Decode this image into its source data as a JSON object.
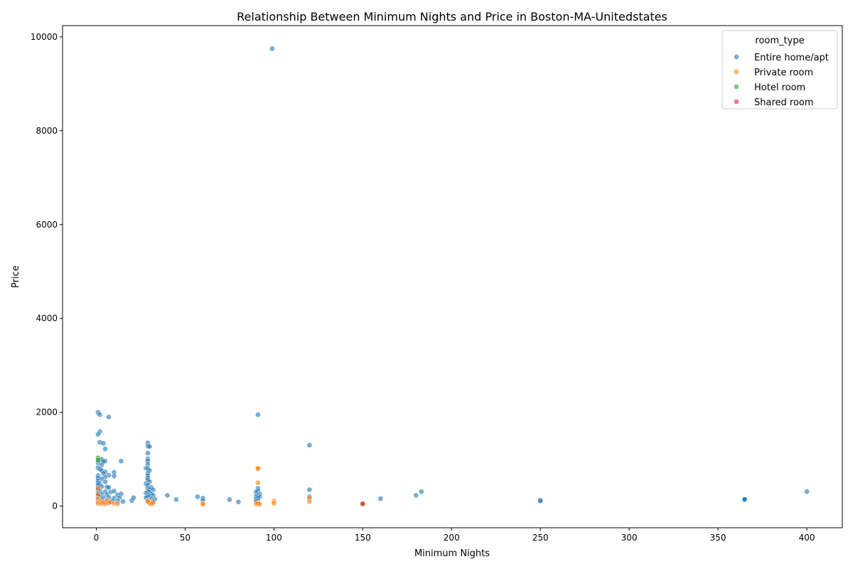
{
  "chart_data": {
    "type": "scatter",
    "title": "Relationship Between Minimum Nights and Price in Boston-MA-Unitedstates",
    "xlabel": "Minimum Nights",
    "ylabel": "Price",
    "xlim": [
      -19,
      420
    ],
    "ylim": [
      -460,
      10240
    ],
    "xticks": [
      0,
      50,
      100,
      150,
      200,
      250,
      300,
      350,
      400
    ],
    "yticks": [
      0,
      2000,
      4000,
      6000,
      8000,
      10000
    ],
    "grid": false,
    "legend": {
      "title": "room_type",
      "placement": "top-right"
    },
    "series": [
      {
        "name": "Entire home/apt",
        "color": "#1f77b4",
        "points": [
          [
            1,
            2000
          ],
          [
            2,
            1950
          ],
          [
            7,
            1900
          ],
          [
            2,
            1590
          ],
          [
            1,
            1530
          ],
          [
            2,
            1360
          ],
          [
            4,
            1340
          ],
          [
            5,
            1220
          ],
          [
            1,
            990
          ],
          [
            2,
            980
          ],
          [
            3,
            1000
          ],
          [
            5,
            960
          ],
          [
            4,
            950
          ],
          [
            14,
            960
          ],
          [
            1,
            920
          ],
          [
            3,
            880
          ],
          [
            1,
            820
          ],
          [
            2,
            790
          ],
          [
            3,
            760
          ],
          [
            5,
            730
          ],
          [
            4,
            700
          ],
          [
            7,
            660
          ],
          [
            10,
            720
          ],
          [
            10,
            640
          ],
          [
            1,
            650
          ],
          [
            1,
            600
          ],
          [
            5,
            620
          ],
          [
            3,
            580
          ],
          [
            1,
            540
          ],
          [
            1,
            500
          ],
          [
            2,
            480
          ],
          [
            5,
            520
          ],
          [
            1,
            450
          ],
          [
            3,
            420
          ],
          [
            6,
            410
          ],
          [
            7,
            400
          ],
          [
            1,
            380
          ],
          [
            1,
            350
          ],
          [
            2,
            330
          ],
          [
            5,
            310
          ],
          [
            8,
            300
          ],
          [
            10,
            320
          ],
          [
            1,
            280
          ],
          [
            3,
            260
          ],
          [
            6,
            250
          ],
          [
            12,
            240
          ],
          [
            14,
            260
          ],
          [
            1,
            220
          ],
          [
            2,
            200
          ],
          [
            4,
            180
          ],
          [
            7,
            190
          ],
          [
            10,
            170
          ],
          [
            13,
            180
          ],
          [
            1,
            150
          ],
          [
            3,
            140
          ],
          [
            6,
            130
          ],
          [
            9,
            120
          ],
          [
            12,
            110
          ],
          [
            15,
            100
          ],
          [
            1,
            100
          ],
          [
            2,
            80
          ],
          [
            5,
            90
          ],
          [
            7,
            80
          ],
          [
            20,
            120
          ],
          [
            21,
            180
          ],
          [
            29,
            1350
          ],
          [
            29,
            1280
          ],
          [
            30,
            1270
          ],
          [
            29,
            1130
          ],
          [
            29,
            1010
          ],
          [
            29,
            960
          ],
          [
            29,
            890
          ],
          [
            28,
            810
          ],
          [
            29,
            800
          ],
          [
            30,
            760
          ],
          [
            29,
            700
          ],
          [
            29,
            650
          ],
          [
            29,
            600
          ],
          [
            29,
            560
          ],
          [
            30,
            520
          ],
          [
            28,
            480
          ],
          [
            29,
            450
          ],
          [
            31,
            400
          ],
          [
            29,
            380
          ],
          [
            30,
            360
          ],
          [
            32,
            350
          ],
          [
            29,
            320
          ],
          [
            30,
            300
          ],
          [
            28,
            280
          ],
          [
            31,
            260
          ],
          [
            29,
            240
          ],
          [
            32,
            230
          ],
          [
            30,
            210
          ],
          [
            29,
            200
          ],
          [
            28,
            180
          ],
          [
            31,
            160
          ],
          [
            33,
            150
          ],
          [
            30,
            130
          ],
          [
            29,
            110
          ],
          [
            32,
            100
          ],
          [
            30,
            90
          ],
          [
            40,
            230
          ],
          [
            45,
            140
          ],
          [
            57,
            200
          ],
          [
            60,
            170
          ],
          [
            60,
            120
          ],
          [
            75,
            140
          ],
          [
            80,
            90
          ],
          [
            91,
            1950
          ],
          [
            91,
            380
          ],
          [
            91,
            330
          ],
          [
            90,
            300
          ],
          [
            92,
            260
          ],
          [
            91,
            230
          ],
          [
            90,
            210
          ],
          [
            92,
            200
          ],
          [
            91,
            180
          ],
          [
            90,
            150
          ],
          [
            91,
            120
          ],
          [
            90,
            100
          ],
          [
            99,
            9750
          ],
          [
            120,
            1300
          ],
          [
            120,
            350
          ],
          [
            120,
            200
          ],
          [
            150,
            60
          ],
          [
            160,
            160
          ],
          [
            180,
            230
          ],
          [
            183,
            310
          ],
          [
            250,
            130
          ],
          [
            250,
            110
          ],
          [
            365,
            150
          ],
          [
            365,
            140
          ],
          [
            365,
            145
          ],
          [
            400,
            310
          ]
        ]
      },
      {
        "name": "Private room",
        "color": "#ff7f0e",
        "points": [
          [
            1,
            380
          ],
          [
            1,
            250
          ],
          [
            1,
            150
          ],
          [
            1,
            90
          ],
          [
            1,
            60
          ],
          [
            2,
            120
          ],
          [
            2,
            70
          ],
          [
            3,
            100
          ],
          [
            3,
            60
          ],
          [
            4,
            80
          ],
          [
            5,
            50
          ],
          [
            6,
            110
          ],
          [
            7,
            70
          ],
          [
            8,
            90
          ],
          [
            10,
            60
          ],
          [
            12,
            50
          ],
          [
            29,
            120
          ],
          [
            30,
            80
          ],
          [
            30,
            60
          ],
          [
            31,
            50
          ],
          [
            29,
            100
          ],
          [
            32,
            70
          ],
          [
            60,
            60
          ],
          [
            60,
            40
          ],
          [
            91,
            810
          ],
          [
            91,
            800
          ],
          [
            91,
            500
          ],
          [
            91,
            70
          ],
          [
            91,
            60
          ],
          [
            90,
            50
          ],
          [
            92,
            40
          ],
          [
            100,
            110
          ],
          [
            100,
            60
          ],
          [
            120,
            170
          ],
          [
            120,
            100
          ],
          [
            150,
            40
          ]
        ]
      },
      {
        "name": "Hotel room",
        "color": "#2ca02c",
        "points": [
          [
            1,
            1030
          ],
          [
            1,
            980
          ]
        ]
      },
      {
        "name": "Shared room",
        "color": "#d62728",
        "points": [
          [
            150,
            50
          ]
        ]
      }
    ]
  }
}
